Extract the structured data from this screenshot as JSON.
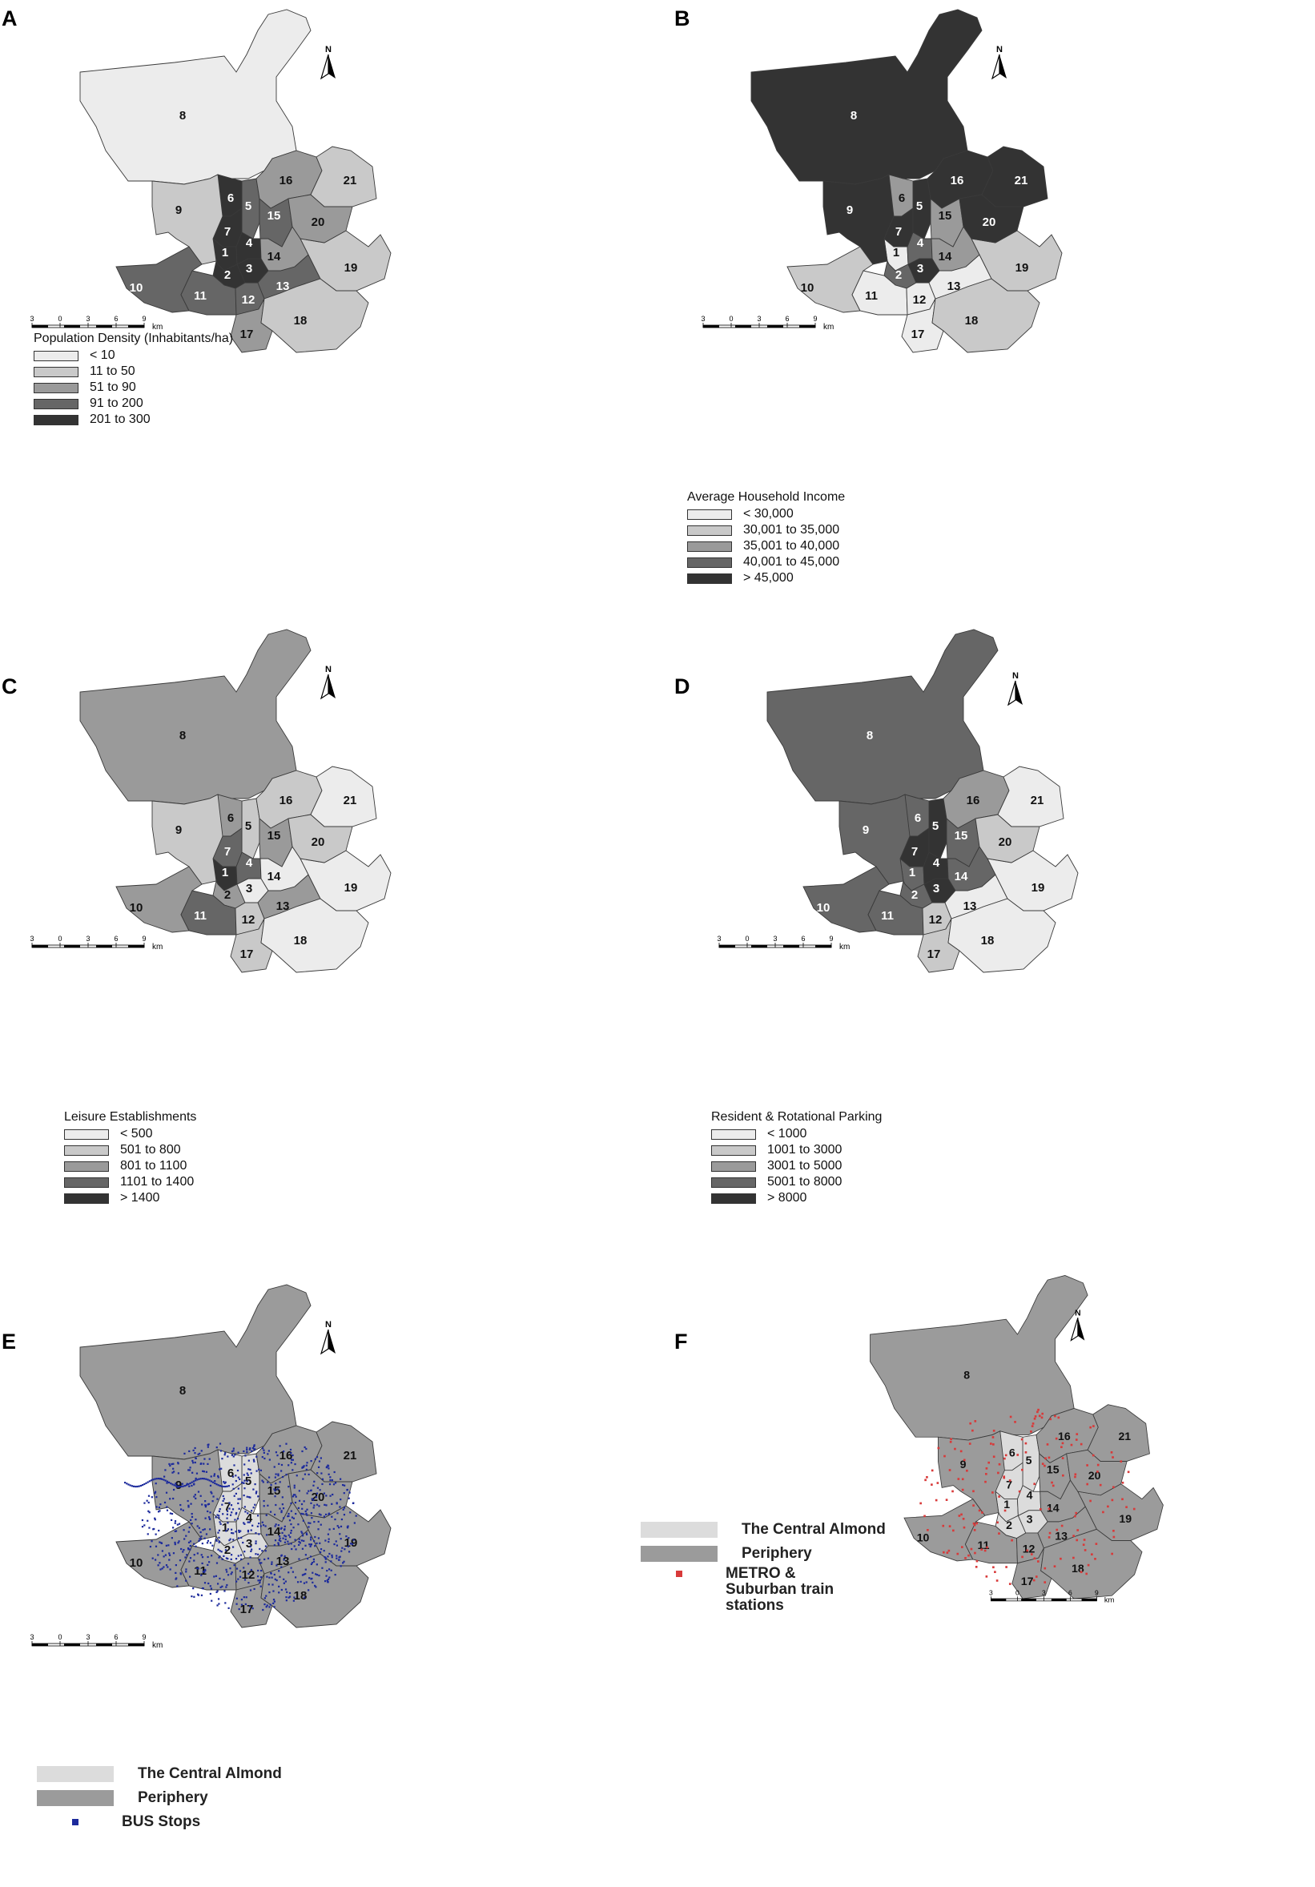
{
  "colors": {
    "c1": "#ececec",
    "c2": "#c9c9c9",
    "c3": "#9a9a9a",
    "c4": "#666666",
    "c5": "#333333",
    "almond": "#dcdcdc",
    "periphery": "#9b9b9b",
    "bus": "#1c2a9c",
    "metro": "#d83a3a"
  },
  "scale": {
    "ticks": [
      "3",
      "0",
      "3",
      "6",
      "9"
    ],
    "unit": "km"
  },
  "north": "N",
  "panels": [
    {
      "label": "A",
      "legend_title": "Population Density (Inhabitants/ha)",
      "classes": [
        "< 10",
        "11 to 50",
        "51 to 90",
        "91 to 200",
        "201 to 300"
      ],
      "district_class": {
        "1": 5,
        "2": 5,
        "3": 5,
        "4": 5,
        "5": 4,
        "6": 5,
        "7": 5,
        "8": 1,
        "9": 2,
        "10": 4,
        "11": 4,
        "12": 4,
        "13": 4,
        "14": 3,
        "15": 4,
        "16": 3,
        "17": 3,
        "18": 2,
        "19": 2,
        "20": 3,
        "21": 2
      }
    },
    {
      "label": "B",
      "legend_title": "Average Household Income",
      "classes": [
        "< 30,000",
        "30,001 to 35,000",
        "35,001 to 40,000",
        "40,001 to 45,000",
        "> 45,000"
      ],
      "district_class": {
        "1": 1,
        "2": 4,
        "3": 5,
        "4": 4,
        "5": 5,
        "6": 3,
        "7": 5,
        "8": 5,
        "9": 5,
        "10": 2,
        "11": 1,
        "12": 1,
        "13": 1,
        "14": 3,
        "15": 3,
        "16": 5,
        "17": 1,
        "18": 2,
        "19": 2,
        "20": 5,
        "21": 5
      }
    },
    {
      "label": "C",
      "legend_title": "Leisure Establishments",
      "classes": [
        "< 500",
        "501 to 800",
        "801 to 1100",
        "1101 to 1400",
        "> 1400"
      ],
      "district_class": {
        "1": 5,
        "2": 3,
        "3": 1,
        "4": 4,
        "5": 2,
        "6": 3,
        "7": 4,
        "8": 3,
        "9": 2,
        "10": 3,
        "11": 4,
        "12": 2,
        "13": 3,
        "14": 1,
        "15": 3,
        "16": 2,
        "17": 2,
        "18": 1,
        "19": 1,
        "20": 2,
        "21": 1
      }
    },
    {
      "label": "D",
      "legend_title": "Resident & Rotational Parking",
      "classes": [
        "< 1000",
        "1001 to 3000",
        "3001 to 5000",
        "5001 to 8000",
        "> 8000"
      ],
      "district_class": {
        "1": 4,
        "2": 4,
        "3": 5,
        "4": 5,
        "5": 5,
        "6": 4,
        "7": 5,
        "8": 4,
        "9": 4,
        "10": 4,
        "11": 4,
        "12": 2,
        "13": 1,
        "14": 4,
        "15": 4,
        "16": 3,
        "17": 2,
        "18": 1,
        "19": 1,
        "20": 2,
        "21": 1
      }
    },
    {
      "label": "E",
      "legend_items": [
        "The Central Almond",
        "Periphery",
        "BUS Stops"
      ]
    },
    {
      "label": "F",
      "legend_items": [
        "The Central Almond",
        "Periphery",
        "METRO & Suburban train stations"
      ]
    }
  ],
  "district_numbers": [
    "1",
    "2",
    "3",
    "4",
    "5",
    "6",
    "7",
    "8",
    "9",
    "10",
    "11",
    "12",
    "13",
    "14",
    "15",
    "16",
    "17",
    "18",
    "19",
    "20",
    "21"
  ]
}
